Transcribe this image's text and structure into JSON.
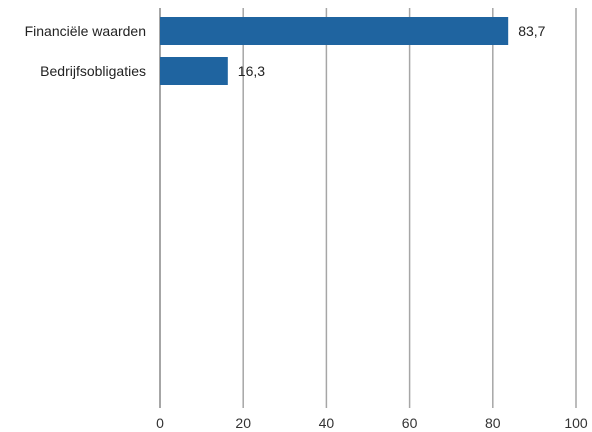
{
  "chart_data": {
    "type": "bar",
    "orientation": "horizontal",
    "categories": [
      "Financiële waarden",
      "Bedrijfsobligaties"
    ],
    "values": [
      83.7,
      16.3
    ],
    "value_labels": [
      "83,7",
      "16,3"
    ],
    "title": "",
    "xlabel": "",
    "ylabel": "",
    "xlim": [
      0,
      100
    ],
    "xticks": [
      0,
      20,
      40,
      60,
      80,
      100
    ],
    "xtick_labels": [
      "0",
      "20",
      "40",
      "60",
      "80",
      "100"
    ],
    "grid": true,
    "legend": "none",
    "colors": {
      "bar": "#1f64a0",
      "grid": "#a6a6a6",
      "axis": "#a6a6a6"
    }
  }
}
